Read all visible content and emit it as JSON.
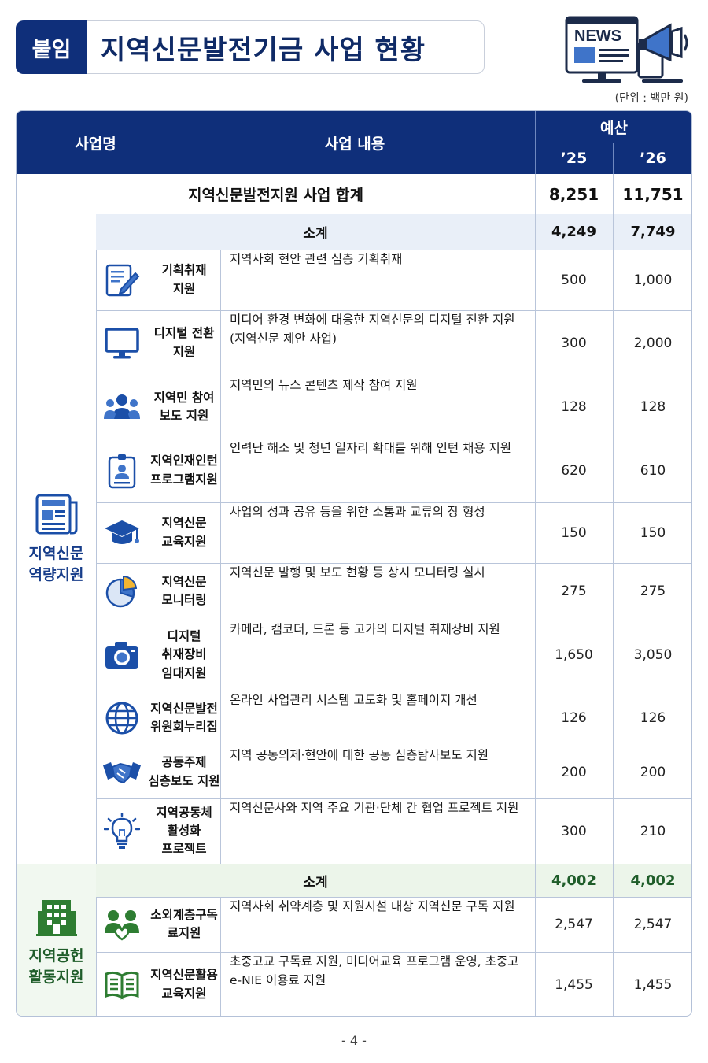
{
  "title": {
    "tag": "붙임",
    "text": "지역신문발전기금 사업 현황"
  },
  "news_badge": "NEWS",
  "unit_note": "(단위 : 백만 원)",
  "header": {
    "col_name": "사업명",
    "col_content": "사업 내용",
    "col_budget": "예산",
    "year_25": "’25",
    "year_26": "’26"
  },
  "total": {
    "label": "지역신문발전지원 사업 합계",
    "v25": "8,251",
    "v26": "11,751"
  },
  "categories": [
    {
      "label_line1": "지역신문",
      "label_line2": "역량지원",
      "icon": "newspaper-icon",
      "color": "#173d8a",
      "subtotal": {
        "label": "소계",
        "v25": "4,249",
        "v26": "7,749"
      },
      "rows": [
        {
          "icon": "pen-document-icon",
          "name1": "기획취재",
          "name2": "지원",
          "name3": "",
          "desc1": "지역사회 현안 관련 심층 기획취재",
          "desc2": "",
          "v25": "500",
          "v26": "1,000"
        },
        {
          "icon": "monitor-icon",
          "name1": "디지털 전환",
          "name2": "지원",
          "name3": "",
          "desc1": "미디어 환경 변화에 대응한 지역신문의 디지털 전환 지원",
          "desc2": "(지역신문 제안 사업)",
          "v25": "300",
          "v26": "2,000"
        },
        {
          "icon": "people-group-icon",
          "name1": "지역민 참여",
          "name2": "보도 지원",
          "name3": "",
          "desc1": "지역민의 뉴스 콘텐츠 제작 참여 지원",
          "desc2": "",
          "v25": "128",
          "v26": "128"
        },
        {
          "icon": "id-badge-icon",
          "name1": "지역인재인턴",
          "name2": "프로그램지원",
          "name3": "",
          "desc1": "인력난 해소 및 청년 일자리 확대를 위해 인턴 채용 지원",
          "desc2": "",
          "v25": "620",
          "v26": "610"
        },
        {
          "icon": "graduation-cap-icon",
          "name1": "지역신문",
          "name2": "교육지원",
          "name3": "",
          "desc1": "사업의 성과 공유 등을 위한 소통과 교류의 장 형성",
          "desc2": "",
          "v25": "150",
          "v26": "150"
        },
        {
          "icon": "pie-chart-icon",
          "name1": "지역신문",
          "name2": "모니터링",
          "name3": "",
          "desc1": "지역신문 발행 및 보도 현황 등 상시 모니터링 실시",
          "desc2": "",
          "v25": "275",
          "v26": "275"
        },
        {
          "icon": "camera-icon",
          "name1": "디지털",
          "name2": "취재장비",
          "name3": "임대지원",
          "desc1": "카메라, 캠코더, 드론 등 고가의 디지털 취재장비 지원",
          "desc2": "",
          "v25": "1,650",
          "v26": "3,050"
        },
        {
          "icon": "globe-icon",
          "name1": "지역신문발전",
          "name2": "위원회누리집",
          "name3": "",
          "desc1": "온라인 사업관리 시스템 고도화 및 홈페이지 개선",
          "desc2": "",
          "v25": "126",
          "v26": "126"
        },
        {
          "icon": "handshake-icon",
          "name1": "공동주제",
          "name2": "심층보도 지원",
          "name3": "",
          "desc1": "지역 공동의제·현안에 대한 공동 심층탐사보도 지원",
          "desc2": "",
          "v25": "200",
          "v26": "200"
        },
        {
          "icon": "lightbulb-icon",
          "name1": "지역공동체",
          "name2": "활성화",
          "name3": "프로젝트",
          "desc1": "지역신문사와 지역 주요 기관·단체 간 협업 프로젝트 지원",
          "desc2": "",
          "v25": "300",
          "v26": "210"
        }
      ]
    },
    {
      "label_line1": "지역공헌",
      "label_line2": "활동지원",
      "icon": "building-icon",
      "color": "#1f5d2a",
      "subtotal": {
        "label": "소계",
        "v25": "4,002",
        "v26": "4,002"
      },
      "rows": [
        {
          "icon": "people-heart-icon",
          "name1": "소외계층구독",
          "name2": "료지원",
          "name3": "",
          "desc1": "지역사회 취약계층 및 지원시설 대상 지역신문 구독 지원",
          "desc2": "",
          "v25": "2,547",
          "v26": "2,547"
        },
        {
          "icon": "open-book-icon",
          "name1": "지역신문활용",
          "name2": "교육지원",
          "name3": "",
          "desc1": "초중고교 구독료 지원, 미디어교육 프로그램 운영, 초중고",
          "desc2": "e-NIE 이용료 지원",
          "v25": "1,455",
          "v26": "1,455"
        }
      ]
    }
  ],
  "page_number": "- 4 -"
}
